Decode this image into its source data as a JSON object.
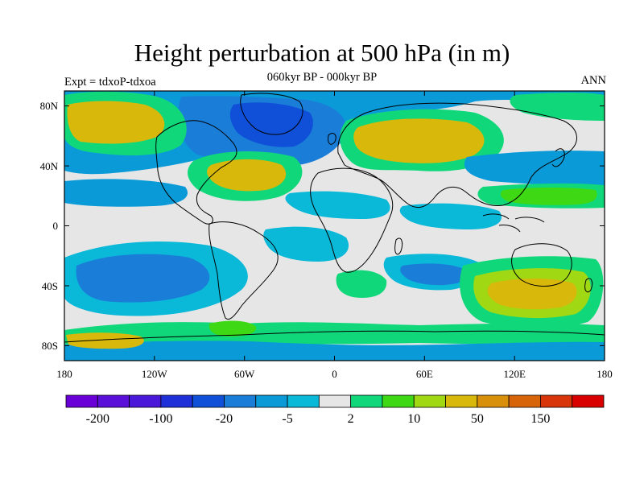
{
  "title": "Height perturbation at 500 hPa (in m)",
  "subtitle": "060kyr BP - 000kyr BP",
  "left_string": "Expt = tdxoP-tdxoa",
  "right_string": "ANN",
  "lat_ticks": [
    "80N",
    "40N",
    "0",
    "40S",
    "80S"
  ],
  "lon_ticks": [
    "180",
    "120W",
    "60W",
    "0",
    "60E",
    "120E",
    "180"
  ],
  "colorbar": {
    "colors": [
      "#6a00d8",
      "#5a10d8",
      "#4a18d8",
      "#2030d8",
      "#1050d8",
      "#1a7ed8",
      "#0a9ad8",
      "#0ab8d8",
      "#e6e6e6",
      "#10d87a",
      "#3ed814",
      "#a0d814",
      "#d8b80a",
      "#d8900a",
      "#d8640a",
      "#d8360a",
      "#d80000"
    ],
    "labels": [
      "-200",
      "-100",
      "-20",
      "-5",
      "2",
      "10",
      "50",
      "150"
    ]
  },
  "chart_data": {
    "type": "heatmap",
    "title": "Height perturbation at 500 hPa (in m)",
    "subtitle": "060kyr BP - 000kyr BP",
    "lon_range": [
      -180,
      180
    ],
    "lat_range": [
      -90,
      90
    ],
    "units": "m",
    "season": "ANN",
    "colorbar_levels": [
      -200,
      -100,
      -20,
      -5,
      2,
      10,
      50,
      150
    ],
    "features": [
      {
        "region": "Arctic / Greenland / North Atlantic",
        "sign": "negative",
        "approx_value": -20
      },
      {
        "region": "North Pacific / Alaska",
        "sign": "positive",
        "approx_value": 50
      },
      {
        "region": "North Atlantic subtropics",
        "sign": "positive",
        "approx_value": 50
      },
      {
        "region": "Europe / Central Asia",
        "sign": "positive",
        "approx_value": 50
      },
      {
        "region": "South Indian Ocean / Australia",
        "sign": "positive",
        "approx_value": 50
      },
      {
        "region": "South Pacific midlatitudes",
        "sign": "negative",
        "approx_value": -20
      },
      {
        "region": "Tropics",
        "sign": "neutral",
        "approx_value": 0
      }
    ]
  }
}
